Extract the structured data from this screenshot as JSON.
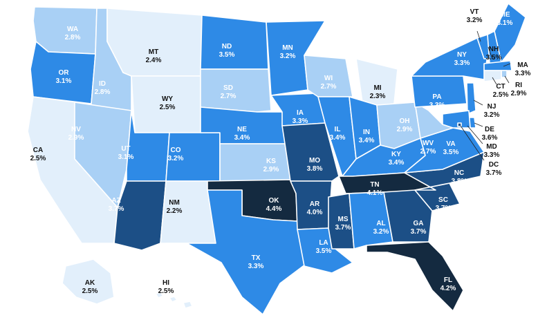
{
  "map": {
    "palette": {
      "lightest": "#e2effb",
      "light": "#a9d0f5",
      "medium": "#2e8ae6",
      "dark": "#1c4f86",
      "darkest": "#142a40"
    },
    "states": [
      {
        "abbr": "WA",
        "value": "2.8%",
        "color": "light"
      },
      {
        "abbr": "OR",
        "value": "3.1%",
        "color": "medium"
      },
      {
        "abbr": "CA",
        "value": "2.5%",
        "color": "lightest"
      },
      {
        "abbr": "ID",
        "value": "2.8%",
        "color": "light"
      },
      {
        "abbr": "NV",
        "value": "2.9%",
        "color": "light"
      },
      {
        "abbr": "MT",
        "value": "2.4%",
        "color": "lightest"
      },
      {
        "abbr": "WY",
        "value": "2.5%",
        "color": "lightest"
      },
      {
        "abbr": "UT",
        "value": "3.1%",
        "color": "medium"
      },
      {
        "abbr": "AZ",
        "value": "3.7%",
        "color": "dark"
      },
      {
        "abbr": "CO",
        "value": "3.2%",
        "color": "medium"
      },
      {
        "abbr": "NM",
        "value": "2.2%",
        "color": "lightest"
      },
      {
        "abbr": "ND",
        "value": "3.5%",
        "color": "medium"
      },
      {
        "abbr": "SD",
        "value": "2.7%",
        "color": "light"
      },
      {
        "abbr": "NE",
        "value": "3.4%",
        "color": "medium"
      },
      {
        "abbr": "KS",
        "value": "2.9%",
        "color": "light"
      },
      {
        "abbr": "OK",
        "value": "4.4%",
        "color": "darkest"
      },
      {
        "abbr": "TX",
        "value": "3.3%",
        "color": "medium"
      },
      {
        "abbr": "MN",
        "value": "3.2%",
        "color": "medium"
      },
      {
        "abbr": "IA",
        "value": "3.3%",
        "color": "medium"
      },
      {
        "abbr": "MO",
        "value": "3.8%",
        "color": "dark"
      },
      {
        "abbr": "AR",
        "value": "4.0%",
        "color": "dark"
      },
      {
        "abbr": "LA",
        "value": "3.5%",
        "color": "medium"
      },
      {
        "abbr": "WI",
        "value": "2.7%",
        "color": "light"
      },
      {
        "abbr": "IL",
        "value": "3.4%",
        "color": "medium"
      },
      {
        "abbr": "MI",
        "value": "2.3%",
        "color": "lightest"
      },
      {
        "abbr": "IN",
        "value": "3.4%",
        "color": "medium"
      },
      {
        "abbr": "OH",
        "value": "2.9%",
        "color": "light"
      },
      {
        "abbr": "KY",
        "value": "3.4%",
        "color": "medium"
      },
      {
        "abbr": "TN",
        "value": "4.1%",
        "color": "darkest"
      },
      {
        "abbr": "MS",
        "value": "3.7%",
        "color": "dark"
      },
      {
        "abbr": "AL",
        "value": "3.2%",
        "color": "medium"
      },
      {
        "abbr": "GA",
        "value": "3.7%",
        "color": "dark"
      },
      {
        "abbr": "FL",
        "value": "4.2%",
        "color": "darkest"
      },
      {
        "abbr": "SC",
        "value": "3.7%",
        "color": "dark"
      },
      {
        "abbr": "NC",
        "value": "3.8%",
        "color": "dark"
      },
      {
        "abbr": "VA",
        "value": "3.5%",
        "color": "medium"
      },
      {
        "abbr": "WV",
        "value": "2.7%",
        "color": "light"
      },
      {
        "abbr": "PA",
        "value": "3.3%",
        "color": "medium"
      },
      {
        "abbr": "NY",
        "value": "3.3%",
        "color": "medium"
      },
      {
        "abbr": "VT",
        "value": "3.2%",
        "color": "medium"
      },
      {
        "abbr": "NH",
        "value": "3.5%",
        "color": "medium"
      },
      {
        "abbr": "ME",
        "value": "3.1%",
        "color": "medium"
      },
      {
        "abbr": "MA",
        "value": "3.3%",
        "color": "medium"
      },
      {
        "abbr": "RI",
        "value": "2.9%",
        "color": "light"
      },
      {
        "abbr": "CT",
        "value": "2.5%",
        "color": "lightest"
      },
      {
        "abbr": "NJ",
        "value": "3.2%",
        "color": "medium"
      },
      {
        "abbr": "DE",
        "value": "3.6%",
        "color": "medium"
      },
      {
        "abbr": "MD",
        "value": "3.3%",
        "color": "medium"
      },
      {
        "abbr": "DC",
        "value": "3.7%",
        "color": "dark"
      },
      {
        "abbr": "AK",
        "value": "2.5%",
        "color": "lightest"
      },
      {
        "abbr": "HI",
        "value": "2.5%",
        "color": "lightest"
      }
    ]
  }
}
